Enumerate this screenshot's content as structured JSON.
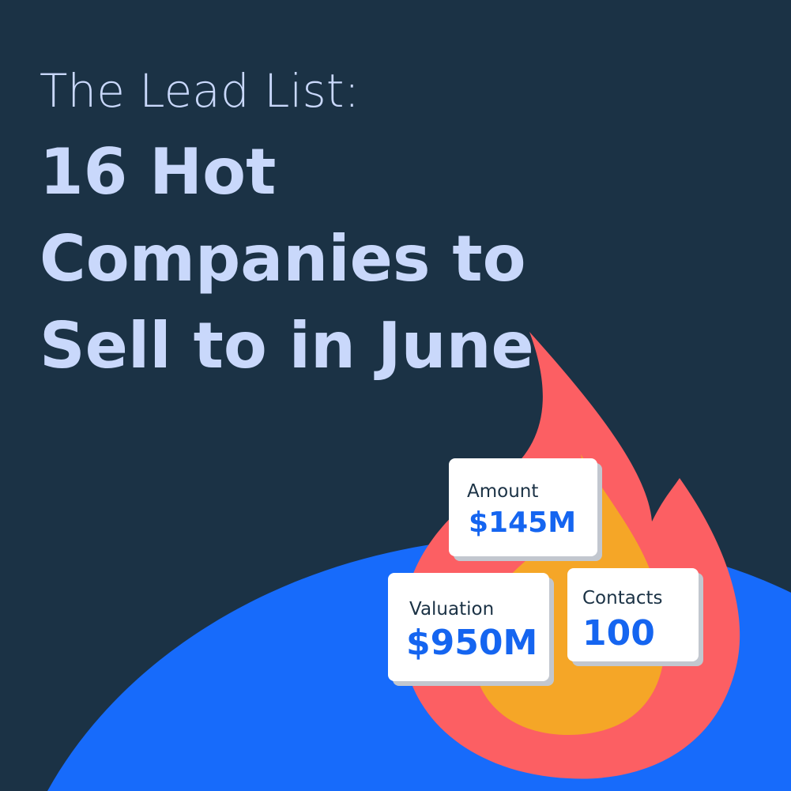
{
  "header": {
    "eyebrow": "The Lead List:",
    "title_lines": [
      "16 Hot",
      "Companies to",
      "Sell to in June"
    ]
  },
  "cards": [
    {
      "label": "Amount",
      "value": "$145M"
    },
    {
      "label": "Valuation",
      "value": "$950M"
    },
    {
      "label": "Contacts",
      "value": "100"
    }
  ]
}
